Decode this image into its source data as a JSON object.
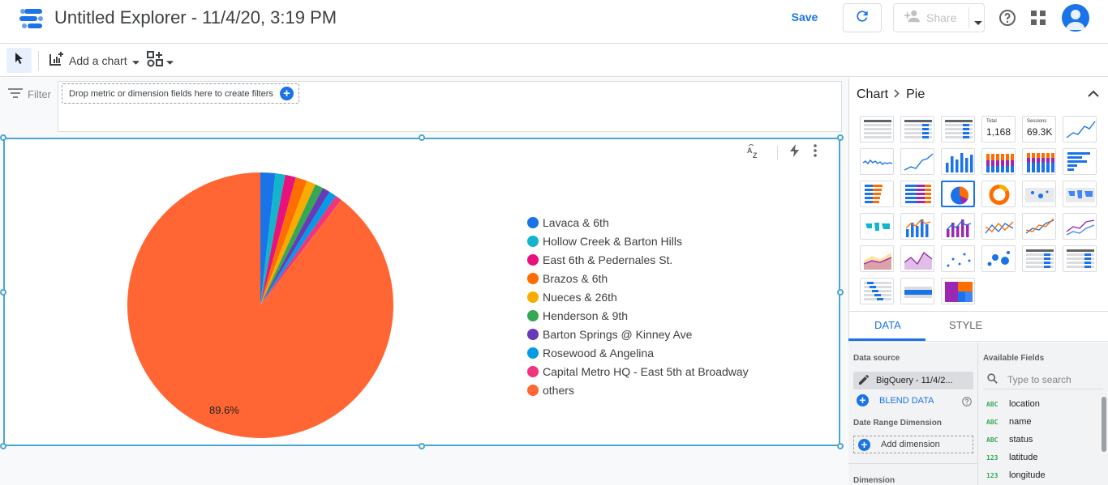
{
  "header": {
    "title": "Untitled Explorer - 11/4/20, 3:19 PM",
    "save_label": "Save",
    "share_label": "Share"
  },
  "toolbar": {
    "add_chart_label": "Add a chart"
  },
  "filter": {
    "label": "Filter",
    "drop_text": "Drop metric or dimension fields here to create filters"
  },
  "chart_data": {
    "type": "pie",
    "title": "",
    "categories": [
      "Lavaca & 6th",
      "Hollow Creek & Barton Hills",
      "East 6th & Pedernales St.",
      "Brazos & 6th",
      "Nueces & 26th",
      "Henderson & 9th",
      "Barton Springs @ Kinney Ave",
      "Rosewood & Angelina",
      "Capital Metro HQ - East 5th at Broadway",
      "others"
    ],
    "values": [
      1.8,
      1.2,
      1.3,
      1.4,
      1.1,
      1.0,
      0.9,
      0.9,
      0.8,
      89.6
    ],
    "colors": [
      "#1a73e8",
      "#12b5cb",
      "#e8127c",
      "#ff6d01",
      "#f9ab00",
      "#34a853",
      "#673ab7",
      "#039be5",
      "#f0347e",
      "#ff6633"
    ],
    "data_labels": [
      "",
      "",
      "",
      "",
      "",
      "",
      "",
      "",
      "",
      "89.6%"
    ],
    "legend_position": "right"
  },
  "panel": {
    "breadcrumb_root": "Chart",
    "breadcrumb_current": "Pie",
    "scorecard_total_label": "Total",
    "scorecard_total_value": "1,168",
    "scorecard_sessions_label": "Sessions",
    "scorecard_sessions_value": "69.3K",
    "tab_data": "DATA",
    "tab_style": "STYLE",
    "data_source_label": "Data source",
    "data_source_value": "BigQuery - 11/4/2...",
    "blend_label": "BLEND DATA",
    "date_range_label": "Date Range Dimension",
    "add_dimension_label": "Add dimension",
    "dimension_label": "Dimension",
    "available_fields_label": "Available Fields",
    "search_placeholder": "Type to search",
    "fields": [
      {
        "type": "ABC",
        "name": "location"
      },
      {
        "type": "ABC",
        "name": "name"
      },
      {
        "type": "ABC",
        "name": "status"
      },
      {
        "type": "123",
        "name": "latitude"
      },
      {
        "type": "123",
        "name": "longitude"
      }
    ]
  }
}
